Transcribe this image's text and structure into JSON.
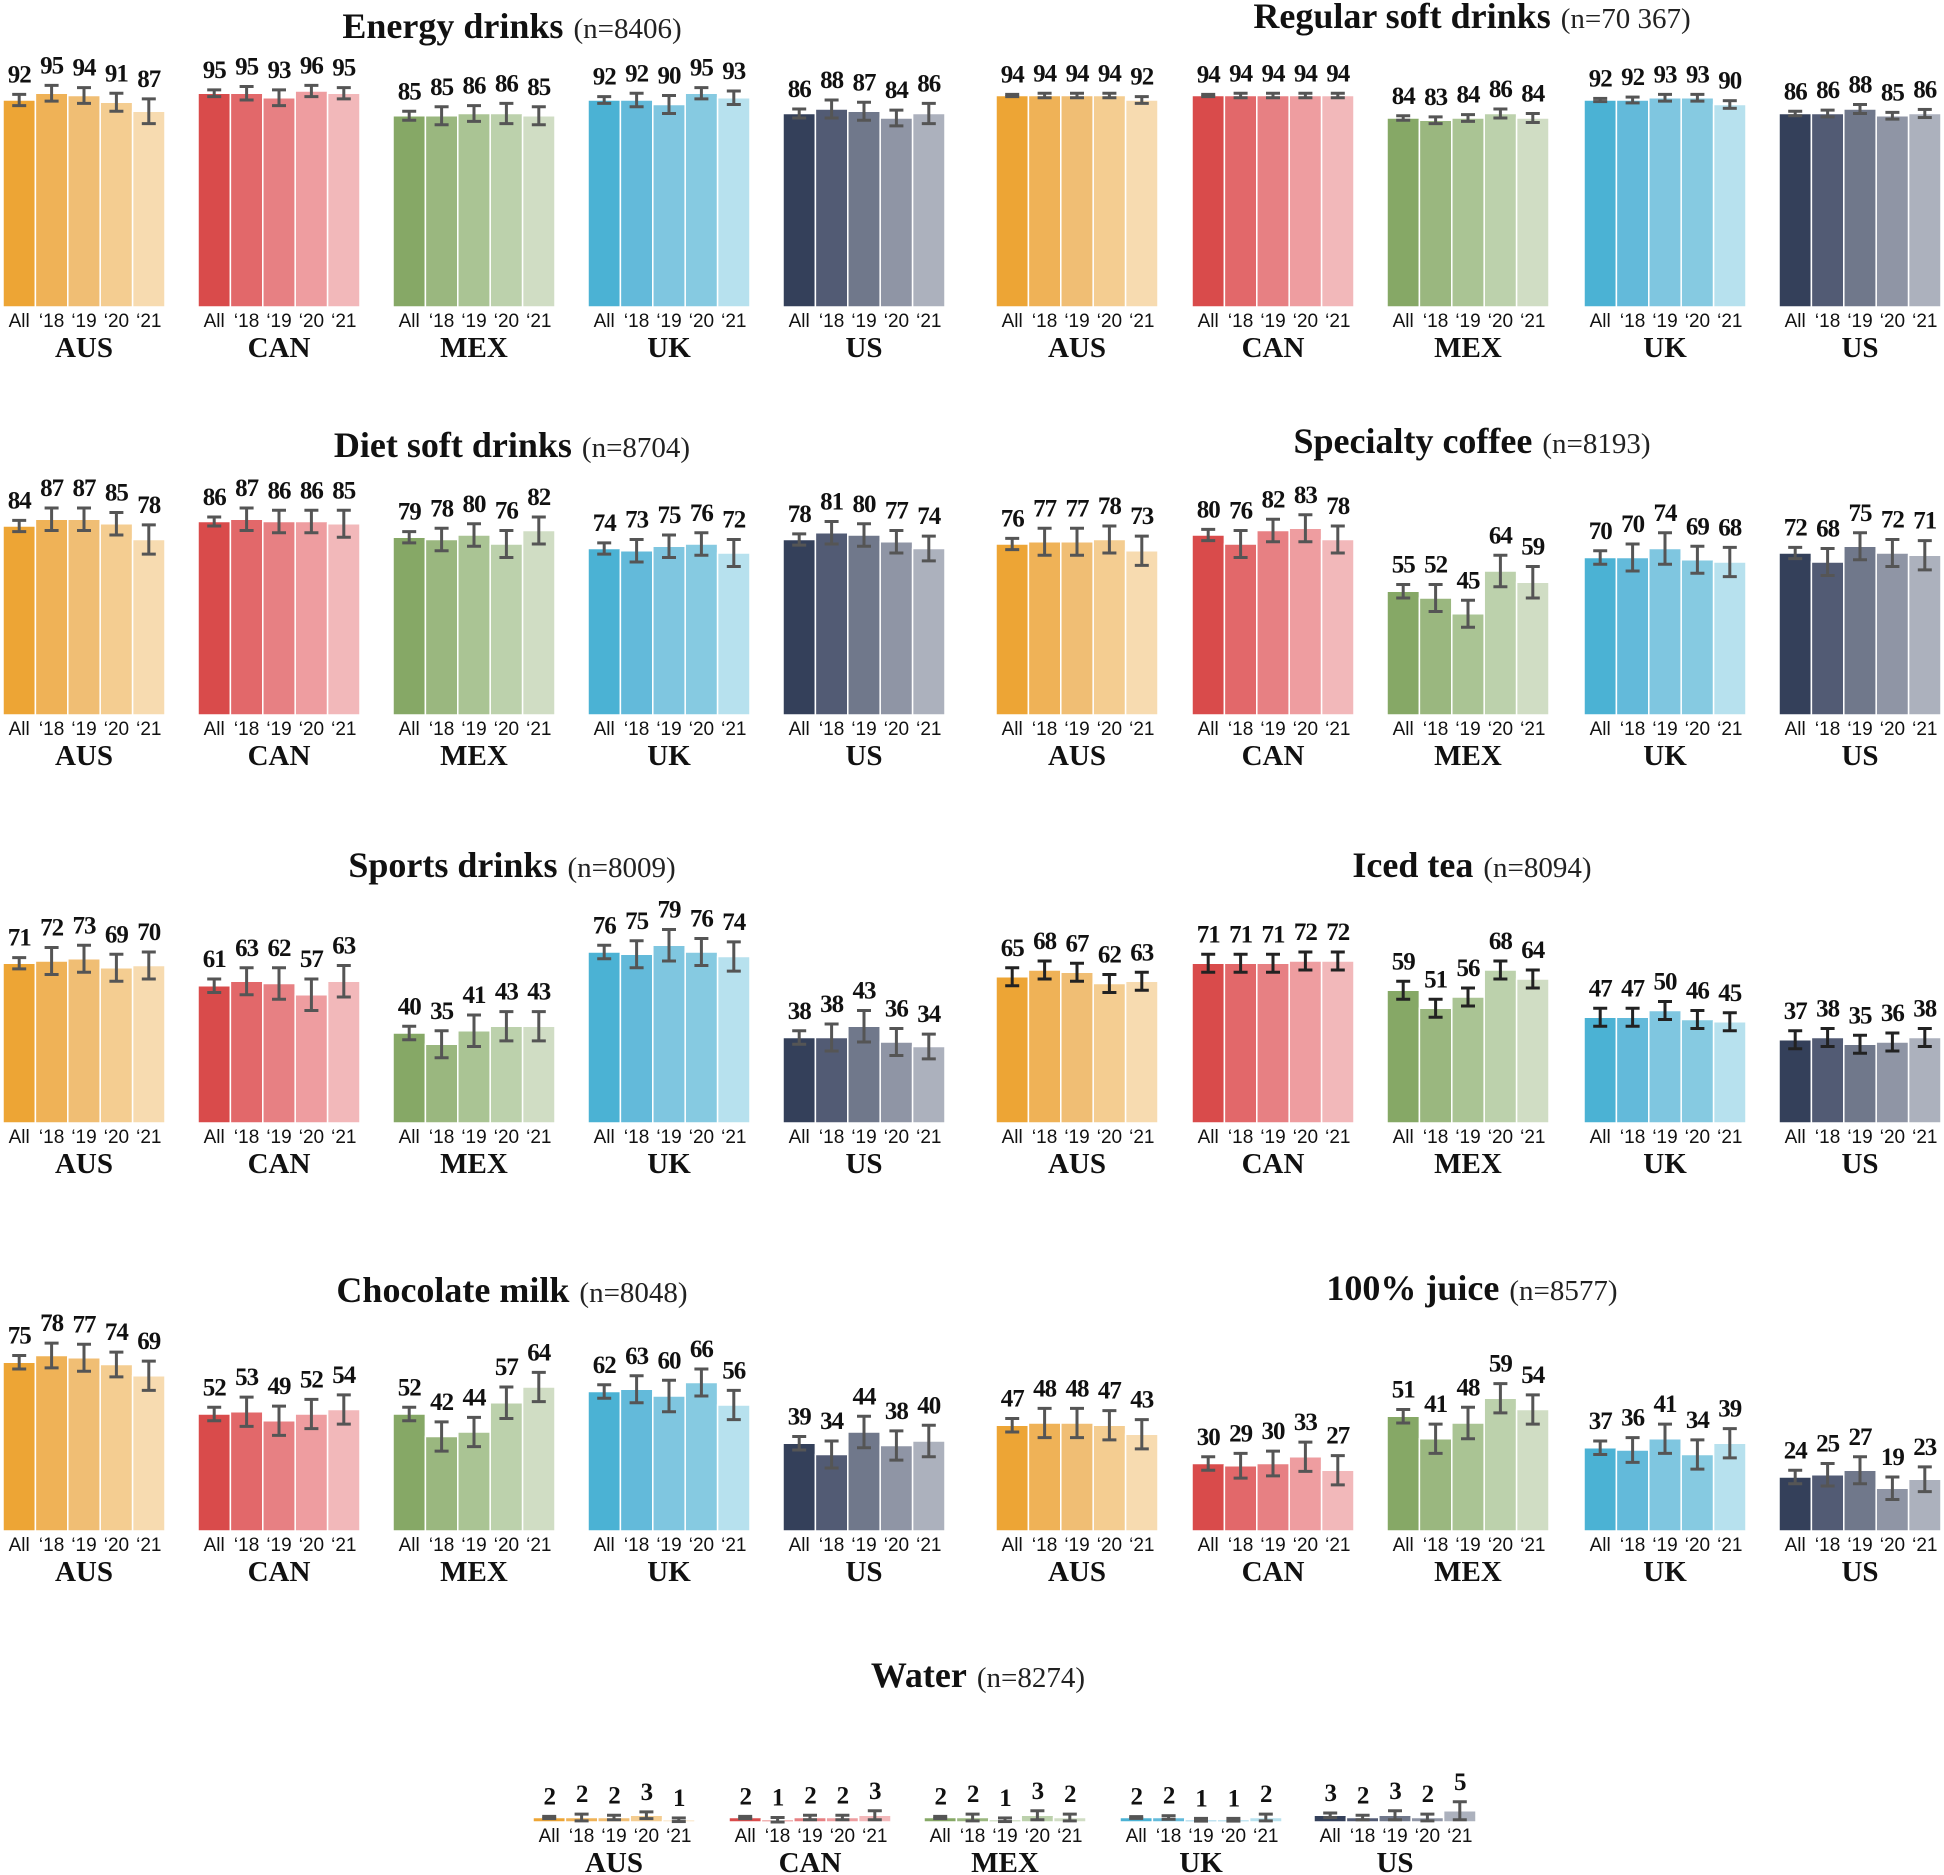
{
  "palette": {
    "AUS": [
      "#EDA535",
      "#EFB257",
      "#F0BE74",
      "#F4CD91",
      "#F7DBB0"
    ],
    "CAN": [
      "#D94B4B",
      "#E2686A",
      "#E78083",
      "#EE9DA0",
      "#F2B8BA"
    ],
    "MEX": [
      "#86A866",
      "#9AB77F",
      "#AAC494",
      "#BCD1AC",
      "#D0DDC4"
    ],
    "UK": [
      "#4BB2D4",
      "#63BADA",
      "#7FC6E0",
      "#86CAE1",
      "#B7E1EE"
    ],
    "US": [
      "#34405A",
      "#525B74",
      "#70788B",
      "#8F95A5",
      "#ACB1BD"
    ]
  },
  "chart_data": [
    {
      "type": "bar",
      "title": "Energy drinks",
      "n_label": "(n=8406)",
      "categories": [
        "All",
        "‘18",
        "‘19",
        "‘20",
        "‘21"
      ],
      "ylim": [
        0,
        100
      ],
      "error_color": "#555555",
      "series": [
        {
          "country": "AUS",
          "values": [
            92,
            95,
            94,
            91,
            87
          ],
          "ci": [
            2.5,
            3.5,
            3.5,
            4,
            5.5
          ]
        },
        {
          "country": "CAN",
          "values": [
            95,
            95,
            93,
            96,
            95
          ],
          "ci": [
            1.5,
            3,
            3.5,
            2.5,
            2.5
          ]
        },
        {
          "country": "MEX",
          "values": [
            85,
            85,
            86,
            86,
            85
          ],
          "ci": [
            2,
            4,
            3.5,
            4.5,
            4
          ]
        },
        {
          "country": "UK",
          "values": [
            92,
            92,
            90,
            95,
            93
          ],
          "ci": [
            1.5,
            3,
            4,
            2.5,
            3
          ]
        },
        {
          "country": "US",
          "values": [
            86,
            88,
            87,
            84,
            86
          ],
          "ci": [
            2,
            4,
            4,
            3.5,
            4.5
          ]
        }
      ]
    },
    {
      "type": "bar",
      "title": "Regular soft drinks",
      "n_label": "(n=70 367)",
      "categories": [
        "All",
        "‘18",
        "‘19",
        "‘20",
        "‘21"
      ],
      "ylim": [
        0,
        100
      ],
      "error_color": "#555555",
      "series": [
        {
          "country": "AUS",
          "values": [
            94,
            94,
            94,
            94,
            92
          ],
          "ci": [
            0.5,
            1,
            1,
            1,
            1.5
          ]
        },
        {
          "country": "CAN",
          "values": [
            94,
            94,
            94,
            94,
            94
          ],
          "ci": [
            0.5,
            1,
            1,
            1,
            1
          ]
        },
        {
          "country": "MEX",
          "values": [
            84,
            83,
            84,
            86,
            84
          ],
          "ci": [
            1,
            1.5,
            1.5,
            2,
            2
          ]
        },
        {
          "country": "UK",
          "values": [
            92,
            92,
            93,
            93,
            90
          ],
          "ci": [
            0.7,
            1.3,
            1.5,
            1.5,
            1.7
          ]
        },
        {
          "country": "US",
          "values": [
            86,
            86,
            88,
            85,
            86
          ],
          "ci": [
            1,
            1.5,
            2,
            1.5,
            1.8
          ]
        }
      ]
    },
    {
      "type": "bar",
      "title": "Diet soft drinks",
      "n_label": "(n=8704)",
      "categories": [
        "All",
        "‘18",
        "‘19",
        "‘20",
        "‘21"
      ],
      "ylim": [
        0,
        100
      ],
      "error_color": "#555555",
      "series": [
        {
          "country": "AUS",
          "values": [
            84,
            87,
            87,
            85,
            78
          ],
          "ci": [
            2.5,
            5,
            5,
            5,
            6.5
          ]
        },
        {
          "country": "CAN",
          "values": [
            86,
            87,
            86,
            86,
            85
          ],
          "ci": [
            2,
            5,
            5,
            5,
            6
          ]
        },
        {
          "country": "MEX",
          "values": [
            79,
            78,
            80,
            76,
            82
          ],
          "ci": [
            2.5,
            5,
            5,
            6,
            6
          ]
        },
        {
          "country": "UK",
          "values": [
            74,
            73,
            75,
            76,
            72
          ],
          "ci": [
            2.5,
            5,
            5,
            5,
            6
          ]
        },
        {
          "country": "US",
          "values": [
            78,
            81,
            80,
            77,
            74
          ],
          "ci": [
            2.5,
            5,
            5,
            5,
            5.5
          ]
        }
      ]
    },
    {
      "type": "bar",
      "title": "Specialty coffee",
      "n_label": "(n=8193)",
      "categories": [
        "All",
        "‘18",
        "‘19",
        "‘20",
        "‘21"
      ],
      "ylim": [
        0,
        100
      ],
      "error_color": "#555555",
      "series": [
        {
          "country": "AUS",
          "values": [
            76,
            77,
            77,
            78,
            73
          ],
          "ci": [
            2.5,
            6,
            6,
            6,
            6.5
          ]
        },
        {
          "country": "CAN",
          "values": [
            80,
            76,
            82,
            83,
            78
          ],
          "ci": [
            2.5,
            6,
            5,
            6,
            6
          ]
        },
        {
          "country": "MEX",
          "values": [
            55,
            52,
            45,
            64,
            59
          ],
          "ci": [
            3,
            6,
            6,
            7,
            7
          ]
        },
        {
          "country": "UK",
          "values": [
            70,
            70,
            74,
            69,
            68
          ],
          "ci": [
            3,
            6,
            7,
            6,
            6.5
          ]
        },
        {
          "country": "US",
          "values": [
            72,
            68,
            75,
            72,
            71
          ],
          "ci": [
            2.5,
            6,
            6,
            6,
            6.5
          ]
        }
      ]
    },
    {
      "type": "bar",
      "title": "Sports drinks",
      "n_label": "(n=8009)",
      "categories": [
        "All",
        "‘18",
        "‘19",
        "‘20",
        "‘21"
      ],
      "ylim": [
        0,
        100
      ],
      "error_color": "#555555",
      "series": [
        {
          "country": "AUS",
          "values": [
            71,
            72,
            73,
            69,
            70
          ],
          "ci": [
            2.5,
            6,
            6,
            6,
            6
          ]
        },
        {
          "country": "CAN",
          "values": [
            61,
            63,
            62,
            57,
            63
          ],
          "ci": [
            3,
            6,
            7,
            7,
            7
          ]
        },
        {
          "country": "MEX",
          "values": [
            40,
            35,
            41,
            43,
            43
          ],
          "ci": [
            3,
            6,
            7,
            6.5,
            6.5
          ]
        },
        {
          "country": "UK",
          "values": [
            76,
            75,
            79,
            76,
            74
          ],
          "ci": [
            3,
            6,
            7,
            6,
            6.5
          ]
        },
        {
          "country": "US",
          "values": [
            38,
            38,
            43,
            36,
            34
          ],
          "ci": [
            3,
            6,
            7,
            6,
            5.5
          ]
        }
      ]
    },
    {
      "type": "bar",
      "title": "Iced tea",
      "n_label": "(n=8094)",
      "categories": [
        "All",
        "‘18",
        "‘19",
        "‘20",
        "‘21"
      ],
      "ylim": [
        0,
        100
      ],
      "error_color": "#222222",
      "series": [
        {
          "country": "AUS",
          "values": [
            65,
            68,
            67,
            62,
            63
          ],
          "ci": [
            4,
            4,
            4,
            4,
            4
          ]
        },
        {
          "country": "CAN",
          "values": [
            71,
            71,
            71,
            72,
            72
          ],
          "ci": [
            4,
            4,
            4,
            4,
            4
          ]
        },
        {
          "country": "MEX",
          "values": [
            59,
            51,
            56,
            68,
            64
          ],
          "ci": [
            4,
            4,
            4,
            4,
            4
          ]
        },
        {
          "country": "UK",
          "values": [
            47,
            47,
            50,
            46,
            45
          ],
          "ci": [
            4,
            4,
            4,
            4,
            4
          ]
        },
        {
          "country": "US",
          "values": [
            37,
            38,
            35,
            36,
            38
          ],
          "ci": [
            4,
            4,
            4,
            4,
            4
          ]
        }
      ]
    },
    {
      "type": "bar",
      "title": "Chocolate milk",
      "n_label": "(n=8048)",
      "categories": [
        "All",
        "‘18",
        "‘19",
        "‘20",
        "‘21"
      ],
      "ylim": [
        0,
        100
      ],
      "error_color": "#555555",
      "series": [
        {
          "country": "AUS",
          "values": [
            75,
            78,
            77,
            74,
            69
          ],
          "ci": [
            3,
            5.5,
            6,
            5.5,
            6.5
          ]
        },
        {
          "country": "CAN",
          "values": [
            52,
            53,
            49,
            52,
            54
          ],
          "ci": [
            3,
            6.5,
            6.5,
            6.5,
            6.5
          ]
        },
        {
          "country": "MEX",
          "values": [
            52,
            42,
            44,
            57,
            64
          ],
          "ci": [
            3,
            6.5,
            6.5,
            7,
            6.5
          ]
        },
        {
          "country": "UK",
          "values": [
            62,
            63,
            60,
            66,
            56
          ],
          "ci": [
            3,
            6,
            7,
            6,
            6.5
          ]
        },
        {
          "country": "US",
          "values": [
            39,
            34,
            44,
            38,
            40
          ],
          "ci": [
            3,
            6,
            7,
            6.5,
            7
          ]
        }
      ]
    },
    {
      "type": "bar",
      "title": "100% juice",
      "n_label": "(n=8577)",
      "categories": [
        "All",
        "‘18",
        "‘19",
        "‘20",
        "‘21"
      ],
      "ylim": [
        0,
        100
      ],
      "error_color": "#555555",
      "series": [
        {
          "country": "AUS",
          "values": [
            47,
            48,
            48,
            47,
            43
          ],
          "ci": [
            3,
            6.5,
            6.5,
            6.5,
            6.5
          ]
        },
        {
          "country": "CAN",
          "values": [
            30,
            29,
            30,
            33,
            27
          ],
          "ci": [
            3,
            5.5,
            5.5,
            6.5,
            6.5
          ]
        },
        {
          "country": "MEX",
          "values": [
            51,
            41,
            48,
            59,
            54
          ],
          "ci": [
            3,
            6.5,
            7,
            6.5,
            6.5
          ]
        },
        {
          "country": "UK",
          "values": [
            37,
            36,
            41,
            34,
            39
          ],
          "ci": [
            3,
            5.5,
            6.5,
            6.5,
            6.5
          ]
        },
        {
          "country": "US",
          "values": [
            24,
            25,
            27,
            19,
            23
          ],
          "ci": [
            3,
            5,
            6,
            5,
            5.5
          ]
        }
      ]
    },
    {
      "type": "bar",
      "title": "Water",
      "n_label": "(n=8274)",
      "categories": [
        "All",
        "‘18",
        "‘19",
        "‘20",
        "‘21"
      ],
      "ylim": [
        0,
        100
      ],
      "error_color": "#555555",
      "series": [
        {
          "country": "AUS",
          "values": [
            2,
            2,
            2,
            3,
            1
          ],
          "ci": [
            0.5,
            1.5,
            1,
            1.5,
            0.8
          ]
        },
        {
          "country": "CAN",
          "values": [
            2,
            1,
            2,
            2,
            3
          ],
          "ci": [
            0.5,
            1,
            1,
            1,
            2
          ]
        },
        {
          "country": "MEX",
          "values": [
            2,
            2,
            1,
            3,
            2
          ],
          "ci": [
            0.5,
            1.5,
            0.8,
            2,
            1.5
          ]
        },
        {
          "country": "UK",
          "values": [
            2,
            2,
            1,
            1,
            2
          ],
          "ci": [
            0.4,
            0.8,
            0.6,
            0.6,
            1.5
          ]
        },
        {
          "country": "US",
          "values": [
            3,
            2,
            3,
            2,
            5
          ],
          "ci": [
            1,
            1,
            2,
            1.5,
            4
          ]
        }
      ]
    }
  ]
}
